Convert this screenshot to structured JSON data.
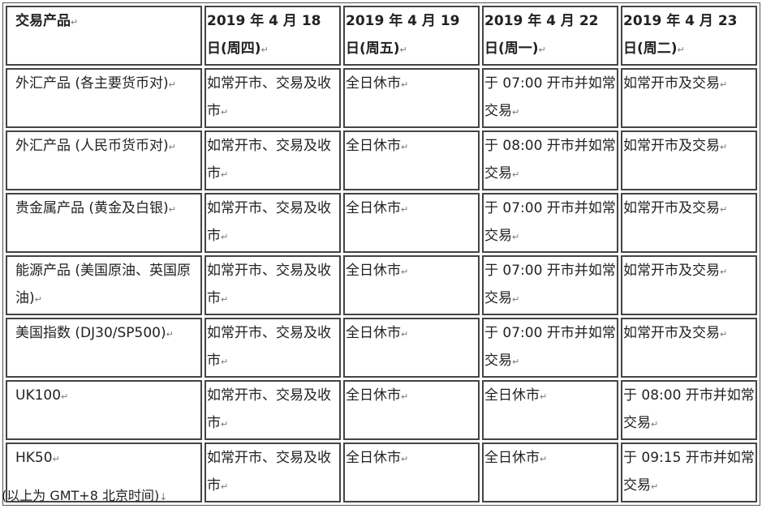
{
  "table": {
    "headers": [
      "交易产品",
      "2019 年 4 月 18 日(周四)",
      "2019 年 4 月 19 日(周五)",
      "2019 年 4 月 22 日(周一)",
      "2019 年 4 月 23 日(周二)"
    ],
    "rows": [
      [
        "外汇产品 (各主要货币对)",
        "如常开市、交易及收市",
        "全日休市",
        "于 07:00 开市并如常交易",
        "如常开市及交易"
      ],
      [
        "外汇产品 (人民币货币对)",
        "如常开市、交易及收市",
        "全日休市",
        "于 08:00 开市并如常交易",
        "如常开市及交易"
      ],
      [
        "贵金属产品 (黄金及白银)",
        "如常开市、交易及收市",
        "全日休市",
        "于 07:00 开市并如常交易",
        "如常开市及交易"
      ],
      [
        "能源产品 (美国原油、英国原油)",
        "如常开市、交易及收市",
        "全日休市",
        "于 07:00 开市并如常交易",
        "如常开市及交易"
      ],
      [
        "美国指数 (DJ30/SP500)",
        "如常开市、交易及收市",
        "全日休市",
        "于 07:00 开市并如常交易",
        "如常开市及交易"
      ],
      [
        "UK100",
        "如常开市、交易及收市",
        "全日休市",
        "全日休市",
        "于 08:00 开市并如常交易"
      ],
      [
        "HK50",
        "如常开市、交易及收市",
        "全日休市",
        "全日休市",
        "于 09:15 开市并如常交易"
      ]
    ]
  },
  "footnote": "(以上为 GMT+8  北京时间)"
}
